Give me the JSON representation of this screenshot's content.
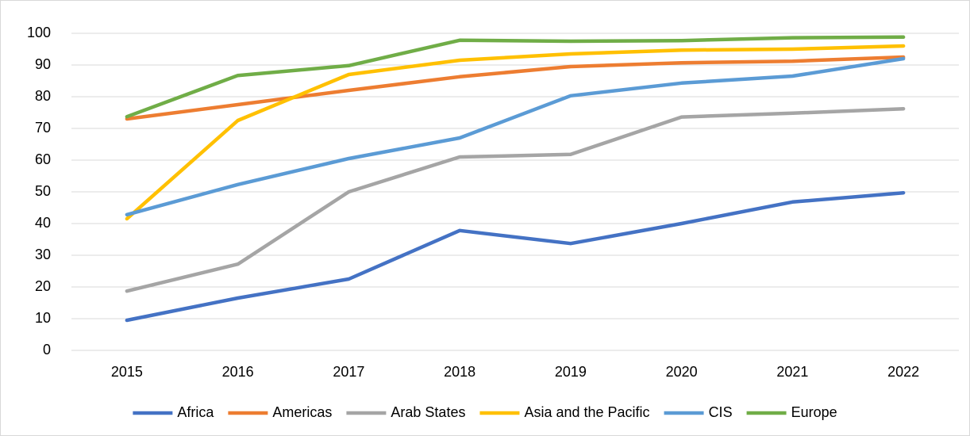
{
  "chart_data": {
    "type": "line",
    "categories": [
      "2015",
      "2016",
      "2017",
      "2018",
      "2019",
      "2020",
      "2021",
      "2022"
    ],
    "series": [
      {
        "name": "Africa",
        "color": "#4472c4",
        "values": [
          9.5,
          16.5,
          22.5,
          37.8,
          33.7,
          40,
          46.8,
          49.7
        ]
      },
      {
        "name": "Americas",
        "color": "#ed7d31",
        "values": [
          73,
          77.5,
          82,
          86.3,
          89.5,
          90.7,
          91.2,
          92.5
        ]
      },
      {
        "name": "Arab States",
        "color": "#a5a5a5",
        "values": [
          18.7,
          27.2,
          50,
          61,
          61.8,
          73.6,
          74.8,
          76.2
        ]
      },
      {
        "name": "Asia and the Pacific",
        "color": "#ffc000",
        "values": [
          41.5,
          72.5,
          87,
          91.5,
          93.5,
          94.7,
          95,
          96
        ]
      },
      {
        "name": "CIS",
        "color": "#5b9bd5",
        "values": [
          42.8,
          52.3,
          60.5,
          67,
          80.3,
          84.3,
          86.5,
          92
        ]
      },
      {
        "name": "Europe",
        "color": "#70ad47",
        "values": [
          73.7,
          86.7,
          89.8,
          97.8,
          97.5,
          97.7,
          98.6,
          98.8
        ]
      }
    ],
    "ylim": [
      0,
      100
    ],
    "yticks": [
      0,
      10,
      20,
      30,
      40,
      50,
      60,
      70,
      80,
      90,
      100
    ],
    "grid": true,
    "legend": "bottom"
  }
}
